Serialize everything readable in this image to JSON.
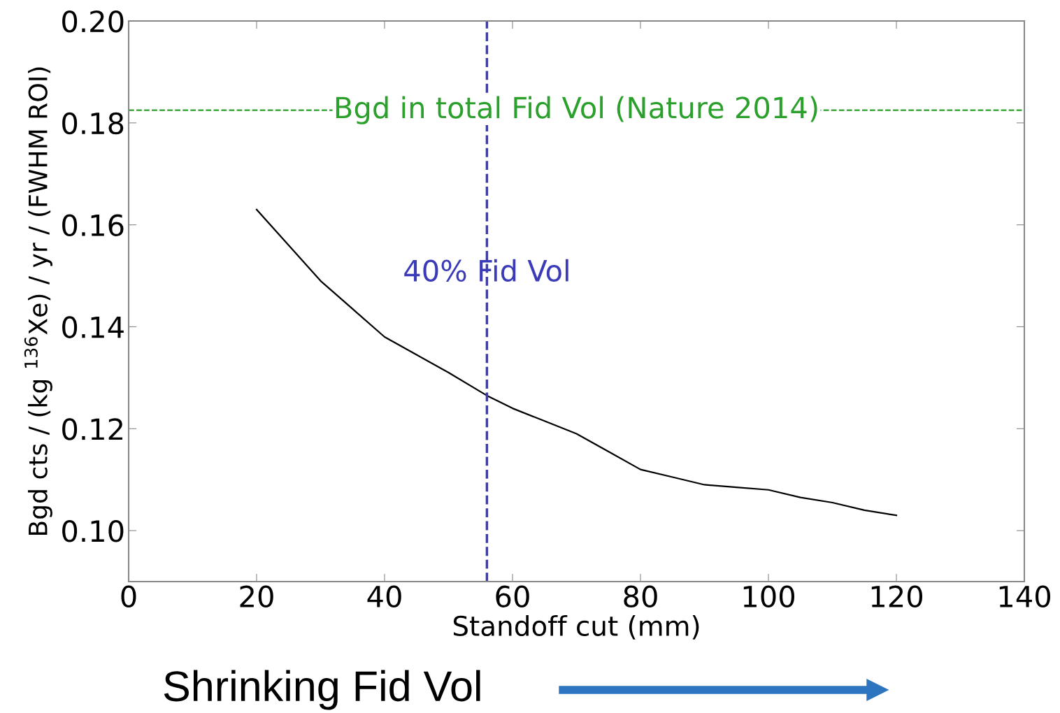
{
  "chart_data": {
    "type": "line",
    "xlabel": "Standoff cut (mm)",
    "ylabel": "Bgd cts / (kg $^{136}$Xe) / yr / (FWHM ROI)",
    "x": [
      20,
      25,
      30,
      35,
      40,
      45,
      50,
      56,
      60,
      65,
      70,
      75,
      80,
      85,
      90,
      95,
      100,
      105,
      110,
      115,
      120
    ],
    "series": [
      {
        "color": "#000000",
        "values": [
          0.163,
          0.156,
          0.149,
          0.1435,
          0.138,
          0.1345,
          0.131,
          0.1265,
          0.124,
          0.1215,
          0.119,
          0.1155,
          0.112,
          0.1105,
          0.109,
          0.1085,
          0.108,
          0.1065,
          0.1055,
          0.104,
          0.103
        ]
      }
    ],
    "xlim": [
      0,
      140
    ],
    "xticks": [
      0,
      20,
      40,
      60,
      80,
      100,
      120,
      140
    ],
    "ylim": [
      0.09,
      0.2
    ],
    "yticks": [
      {
        "value": 0.1,
        "label": "0.10"
      },
      {
        "value": 0.12,
        "label": "0.12"
      },
      {
        "value": 0.14,
        "label": "0.14"
      },
      {
        "value": 0.16,
        "label": "0.16"
      },
      {
        "value": 0.18,
        "label": "0.18"
      },
      {
        "value": 0.2,
        "label": "0.20"
      }
    ],
    "ref_lines": [
      {
        "axis": "y",
        "value": 0.1825,
        "label": "Bgd in total Fid Vol (Nature 2014)",
        "color": "#2ca02c",
        "line_style": "dashed"
      },
      {
        "axis": "x",
        "value": 56,
        "label": "40% Fid Vol",
        "color": "#3b3bb8",
        "line_style": "dashed"
      }
    ],
    "annotations": [
      "Shrinking Fid Vol"
    ],
    "grid": false,
    "legend": false,
    "marker": "none",
    "line_style": "solid"
  }
}
